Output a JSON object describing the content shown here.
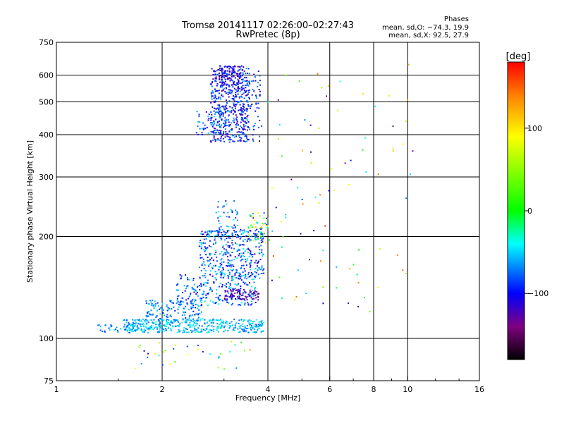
{
  "chart_data": {
    "type": "scatter",
    "title": "Tromsø 20141117 02:26:00–02:27:43",
    "subtitle": "RwPretec (8p)",
    "xlabel": "Frequency [MHz]",
    "ylabel": "Stationary phase Virtual Height [km]",
    "x_scale": "log",
    "y_scale": "log",
    "xlim": [
      1,
      16
    ],
    "ylim": [
      75,
      750
    ],
    "x_ticks": [
      1,
      2,
      4,
      6,
      8,
      10,
      16
    ],
    "x_tick_labels": [
      "1",
      "2",
      "4",
      "6",
      "8",
      "10",
      "16"
    ],
    "y_ticks": [
      75,
      100,
      200,
      300,
      400,
      500,
      600,
      750
    ],
    "y_tick_labels": [
      "75",
      "100",
      "200",
      "300",
      "400",
      "500",
      "600",
      "750"
    ],
    "grid": true,
    "stats": {
      "heading": "Phases",
      "o_line": "mean, sd,O: −74.3, 19.9",
      "x_line": "mean, sd,X:  92.5, 27.9"
    },
    "colorbar": {
      "label": "[deg]",
      "range": [
        -180,
        180
      ],
      "ticks": [
        100,
        0,
        -100
      ],
      "tick_labels": [
        "100",
        "0",
        "−100"
      ],
      "colors": [
        "#ff0000",
        "#ff8000",
        "#ffff00",
        "#00ff00",
        "#00ffff",
        "#0000ff",
        "#800080",
        "#000000"
      ]
    },
    "series": [
      {
        "regions": [
          {
            "xmin": 2.75,
            "xmax": 3.55,
            "ymin": 380,
            "ymax": 640,
            "phase": [
              -130,
              -60
            ],
            "n": 520
          },
          {
            "xmin": 2.9,
            "xmax": 3.35,
            "ymin": 560,
            "ymax": 640,
            "phase": [
              -130,
              -90
            ],
            "n": 80
          },
          {
            "xmin": 3.4,
            "xmax": 3.85,
            "ymin": 380,
            "ymax": 620,
            "phase": [
              -120,
              -60
            ],
            "n": 60
          },
          {
            "xmin": 2.5,
            "xmax": 3.1,
            "ymin": 400,
            "ymax": 470,
            "phase": [
              -110,
              -50
            ],
            "n": 60
          },
          {
            "xmin": 2.55,
            "xmax": 3.9,
            "ymin": 150,
            "ymax": 210,
            "phase": [
              -120,
              -40
            ],
            "n": 380
          },
          {
            "xmin": 2.85,
            "xmax": 3.3,
            "ymin": 200,
            "ymax": 255,
            "phase": [
              -110,
              -40
            ],
            "n": 50
          },
          {
            "xmin": 3.5,
            "xmax": 4.0,
            "ymin": 190,
            "ymax": 235,
            "phase": [
              -130,
              120
            ],
            "n": 60
          },
          {
            "xmin": 2.2,
            "xmax": 3.7,
            "ymin": 125,
            "ymax": 155,
            "phase": [
              -110,
              -40
            ],
            "n": 230
          },
          {
            "xmin": 3.0,
            "xmax": 3.8,
            "ymin": 130,
            "ymax": 140,
            "phase": [
              -140,
              -110
            ],
            "n": 80
          },
          {
            "xmin": 1.8,
            "xmax": 2.6,
            "ymin": 112,
            "ymax": 130,
            "phase": [
              -100,
              -40
            ],
            "n": 140
          },
          {
            "xmin": 1.55,
            "xmax": 3.9,
            "ymin": 104,
            "ymax": 114,
            "phase": [
              -80,
              -30
            ],
            "n": 420
          },
          {
            "xmin": 1.3,
            "xmax": 1.9,
            "ymin": 104,
            "ymax": 110,
            "phase": [
              -90,
              -40
            ],
            "n": 40
          },
          {
            "xmin": 1.6,
            "xmax": 3.6,
            "ymin": 80,
            "ymax": 98,
            "phase": [
              -130,
              140
            ],
            "n": 35
          },
          {
            "xmin": 4.0,
            "xmax": 10.5,
            "ymin": 120,
            "ymax": 680,
            "phase": [
              -150,
              170
            ],
            "n": 90
          }
        ]
      }
    ]
  }
}
